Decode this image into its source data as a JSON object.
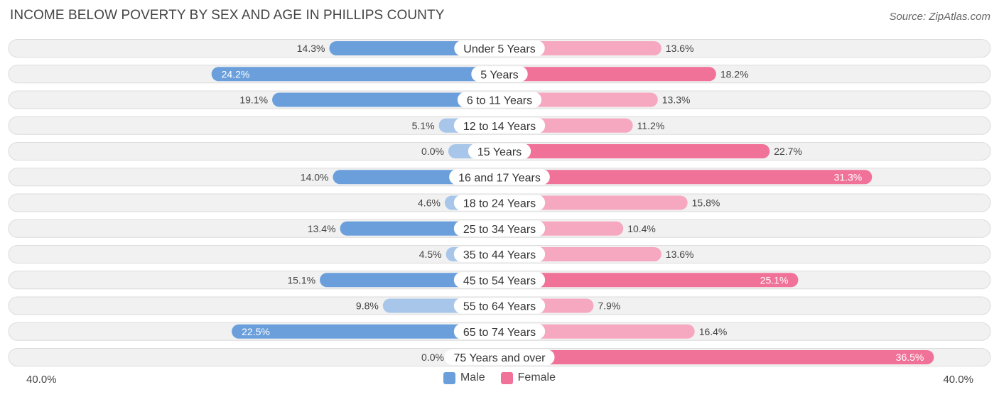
{
  "title": "INCOME BELOW POVERTY BY SEX AND AGE IN PHILLIPS COUNTY",
  "source": "Source: ZipAtlas.com",
  "colors": {
    "male_strong": "#6a9fdc",
    "male_light": "#a7c6ea",
    "female_strong": "#f07299",
    "female_light": "#f6a8c0",
    "row_bg": "#f1f1f1",
    "row_border": "#dcdcdc"
  },
  "axis": {
    "left_label": "40.0%",
    "right_label": "40.0%"
  },
  "legend": {
    "male": "Male",
    "female": "Female"
  },
  "chart_data": {
    "type": "bar",
    "orientation": "horizontal-diverging",
    "title": "INCOME BELOW POVERTY BY SEX AND AGE IN PHILLIPS COUNTY",
    "xlim": [
      -40,
      40
    ],
    "categories": [
      "Under 5 Years",
      "5 Years",
      "6 to 11 Years",
      "12 to 14 Years",
      "15 Years",
      "16 and 17 Years",
      "18 to 24 Years",
      "25 to 34 Years",
      "35 to 44 Years",
      "45 to 54 Years",
      "55 to 64 Years",
      "65 to 74 Years",
      "75 Years and over"
    ],
    "series": [
      {
        "name": "Male",
        "values": [
          14.3,
          24.2,
          19.1,
          5.1,
          0.0,
          14.0,
          4.6,
          13.4,
          4.5,
          15.1,
          9.8,
          22.5,
          0.0
        ],
        "labels": [
          "14.3%",
          "24.2%",
          "19.1%",
          "5.1%",
          "0.0%",
          "14.0%",
          "4.6%",
          "13.4%",
          "4.5%",
          "15.1%",
          "9.8%",
          "22.5%",
          "0.0%"
        ]
      },
      {
        "name": "Female",
        "values": [
          13.6,
          18.2,
          13.3,
          11.2,
          22.7,
          31.3,
          15.8,
          10.4,
          13.6,
          25.1,
          7.9,
          16.4,
          36.5
        ],
        "labels": [
          "13.6%",
          "18.2%",
          "13.3%",
          "11.2%",
          "22.7%",
          "31.3%",
          "15.8%",
          "10.4%",
          "13.6%",
          "25.1%",
          "7.9%",
          "16.4%",
          "36.5%"
        ]
      }
    ]
  }
}
